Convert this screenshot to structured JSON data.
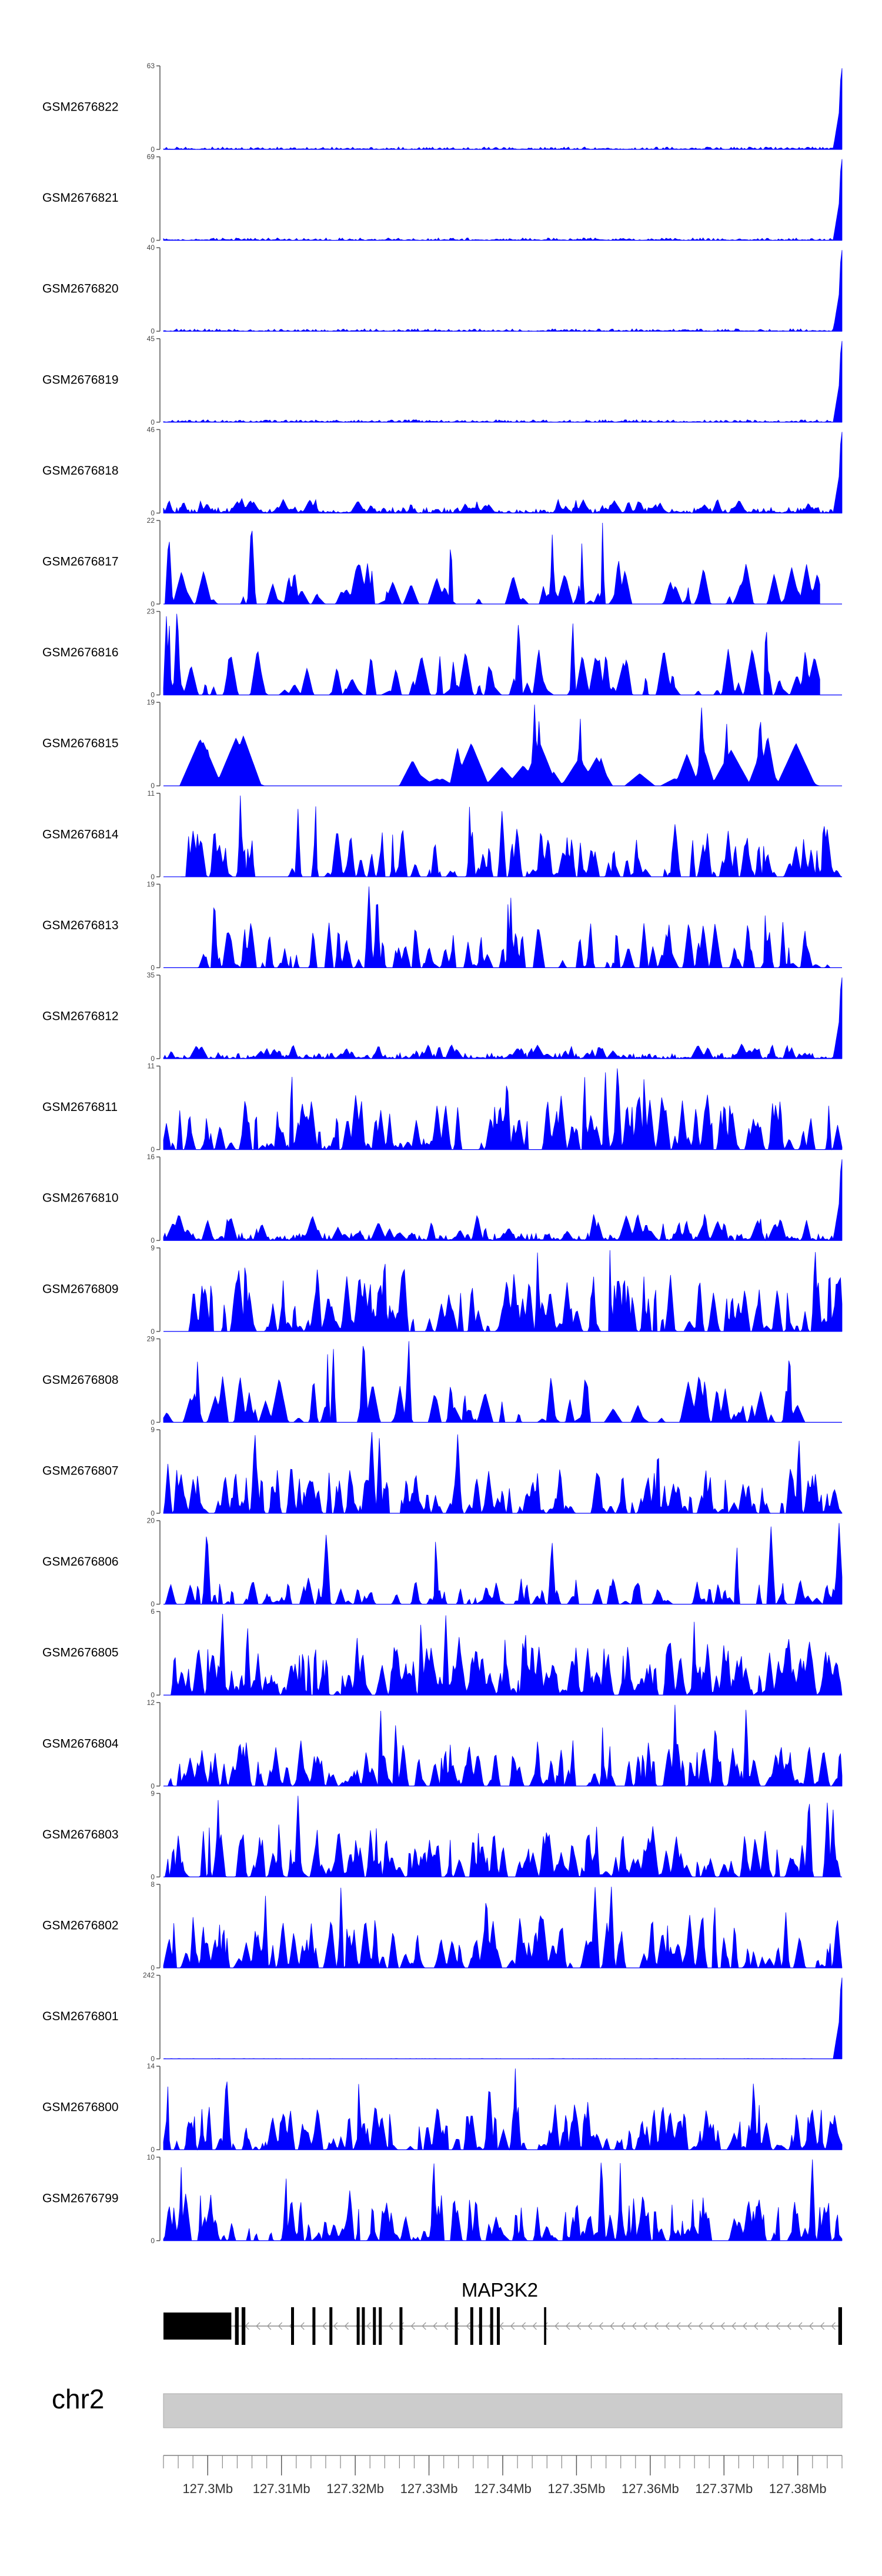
{
  "chart_data": {
    "type": "area",
    "title": "",
    "xlabel": "",
    "ylabel": "",
    "series_color": "#0000ff",
    "tracks": [
      {
        "name": "GSM2676822",
        "ymax": 63,
        "ymin_label": "0",
        "profile": "spike_end_small"
      },
      {
        "name": "GSM2676821",
        "ymax": 69,
        "ymin_label": "0",
        "profile": "spike_end_small"
      },
      {
        "name": "GSM2676820",
        "ymax": 40,
        "ymin_label": "0",
        "profile": "spike_end_small"
      },
      {
        "name": "GSM2676819",
        "ymax": 45,
        "ymin_label": "0",
        "profile": "spike_end_small"
      },
      {
        "name": "GSM2676818",
        "ymax": 46,
        "ymin_label": "0",
        "profile": "spike_end_medium"
      },
      {
        "name": "GSM2676817",
        "ymax": 22,
        "ymin_label": "0",
        "profile": "peaks_sparse"
      },
      {
        "name": "GSM2676816",
        "ymax": 23,
        "ymin_label": "0",
        "profile": "peaks_sparse"
      },
      {
        "name": "GSM2676815",
        "ymax": 19,
        "ymin_label": "0",
        "profile": "triangles"
      },
      {
        "name": "GSM2676814",
        "ymax": 11,
        "ymin_label": "0",
        "profile": "peaks_dense_start"
      },
      {
        "name": "GSM2676813",
        "ymax": 19,
        "ymin_label": "0",
        "profile": "peaks_dense_late"
      },
      {
        "name": "GSM2676812",
        "ymax": 35,
        "ymin_label": "0",
        "profile": "spike_end_medium"
      },
      {
        "name": "GSM2676811",
        "ymax": 11,
        "ymin_label": "0",
        "profile": "peaks_dense"
      },
      {
        "name": "GSM2676810",
        "ymax": 16,
        "ymin_label": "0",
        "profile": "spike_end_low"
      },
      {
        "name": "GSM2676809",
        "ymax": 9,
        "ymin_label": "0",
        "profile": "peaks_dense"
      },
      {
        "name": "GSM2676808",
        "ymax": 29,
        "ymin_label": "0",
        "profile": "peaks_sparse"
      },
      {
        "name": "GSM2676807",
        "ymax": 9,
        "ymin_label": "0",
        "profile": "peaks_dense"
      },
      {
        "name": "GSM2676806",
        "ymax": 20,
        "ymin_label": "0",
        "profile": "peaks_medium"
      },
      {
        "name": "GSM2676805",
        "ymax": 6,
        "ymin_label": "0",
        "profile": "peaks_very_dense"
      },
      {
        "name": "GSM2676804",
        "ymax": 12,
        "ymin_label": "0",
        "profile": "peaks_dense"
      },
      {
        "name": "GSM2676803",
        "ymax": 9,
        "ymin_label": "0",
        "profile": "peaks_dense"
      },
      {
        "name": "GSM2676802",
        "ymax": 8,
        "ymin_label": "0",
        "profile": "peaks_dense"
      },
      {
        "name": "GSM2676801",
        "ymax": 242,
        "ymin_label": "0",
        "profile": "spike_end_only"
      },
      {
        "name": "GSM2676800",
        "ymax": 14,
        "ymin_label": "0",
        "profile": "peaks_dense"
      },
      {
        "name": "GSM2676799",
        "ymax": 10,
        "ymin_label": "0",
        "profile": "peaks_dense"
      }
    ],
    "gene": {
      "name": "MAP3K2",
      "start": 127294000,
      "end": 127386000,
      "exons": [
        [
          127294000,
          127303200
        ],
        [
          127303700,
          127304200
        ],
        [
          127304600,
          127305100
        ],
        [
          127311300,
          127311700
        ],
        [
          127314200,
          127314600
        ],
        [
          127316500,
          127316900
        ],
        [
          127320200,
          127320600
        ],
        [
          127320900,
          127321300
        ],
        [
          127322400,
          127322800
        ],
        [
          127323200,
          127323600
        ],
        [
          127326000,
          127326400
        ],
        [
          127333500,
          127333900
        ],
        [
          127335600,
          127336000
        ],
        [
          127336800,
          127337200
        ],
        [
          127338300,
          127338700
        ],
        [
          127339200,
          127339600
        ],
        [
          127345600,
          127345900
        ],
        [
          127385500,
          127386000
        ]
      ],
      "strand": "-"
    },
    "chromosome": "chr2",
    "axis": {
      "start": 127294000,
      "end": 127386000,
      "ticks": [
        {
          "pos": 127300000,
          "label": "127.3Mb"
        },
        {
          "pos": 127310000,
          "label": "127.31Mb"
        },
        {
          "pos": 127320000,
          "label": "127.32Mb"
        },
        {
          "pos": 127330000,
          "label": "127.33Mb"
        },
        {
          "pos": 127340000,
          "label": "127.34Mb"
        },
        {
          "pos": 127350000,
          "label": "127.35Mb"
        },
        {
          "pos": 127360000,
          "label": "127.36Mb"
        },
        {
          "pos": 127370000,
          "label": "127.37Mb"
        },
        {
          "pos": 127380000,
          "label": "127.38Mb"
        }
      ],
      "minor_step": 2000
    }
  }
}
